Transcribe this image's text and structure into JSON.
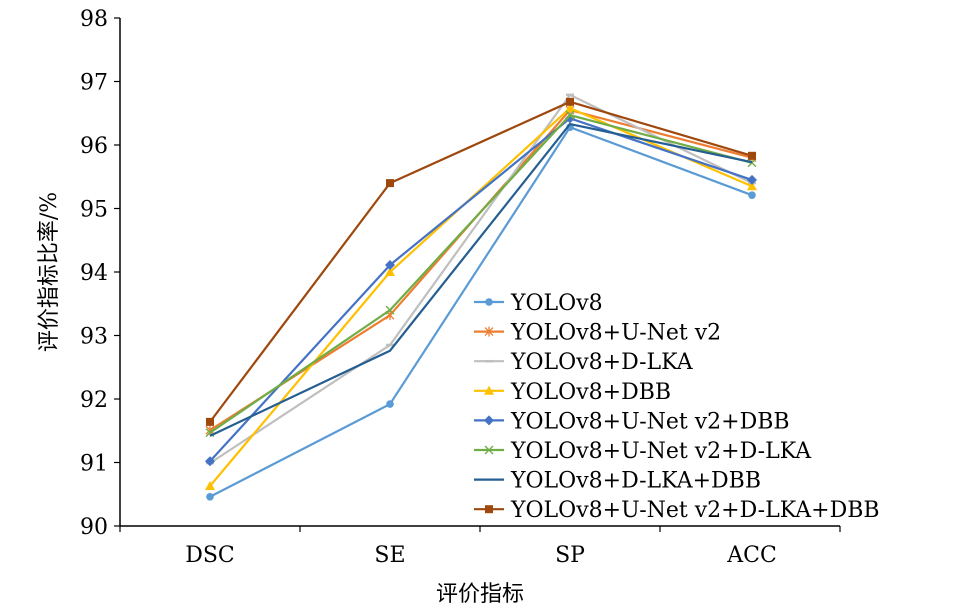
{
  "chart_data": {
    "type": "line",
    "title": "",
    "xlabel": "评价指标",
    "ylabel": "评价指标比率/%",
    "categories": [
      "DSC",
      "SE",
      "SP",
      "ACC"
    ],
    "ylim": [
      90,
      98
    ],
    "yticks": [
      "90",
      "91",
      "92",
      "93",
      "94",
      "95",
      "96",
      "97",
      "98"
    ],
    "grid": false,
    "legend_position": "bottom-right",
    "series": [
      {
        "name": "YOLOv8",
        "color": "#5b9bd5",
        "marker": "circle",
        "values": [
          90.46,
          91.92,
          96.28,
          95.21
        ]
      },
      {
        "name": "YOLOv8+U-Net v2",
        "color": "#ed7d31",
        "marker": "star",
        "values": [
          91.51,
          93.32,
          96.55,
          95.8
        ]
      },
      {
        "name": "YOLOv8+D-LKA",
        "color": "#bfbfbf",
        "marker": "dash",
        "values": [
          90.99,
          92.85,
          96.79,
          95.4
        ]
      },
      {
        "name": "YOLOv8+DBB",
        "color": "#ffc000",
        "marker": "triangle",
        "values": [
          90.63,
          94.0,
          96.58,
          95.35
        ]
      },
      {
        "name": "YOLOv8+U-Net v2+DBB",
        "color": "#4472c4",
        "marker": "diamond",
        "values": [
          91.02,
          94.11,
          96.42,
          95.45
        ]
      },
      {
        "name": "YOLOv8+U-Net v2+D-LKA",
        "color": "#70ad47",
        "marker": "x",
        "values": [
          91.47,
          93.4,
          96.47,
          95.72
        ]
      },
      {
        "name": "YOLOv8+D-LKA+DBB",
        "color": "#255e91",
        "marker": "none",
        "values": [
          91.42,
          92.76,
          96.33,
          95.73
        ]
      },
      {
        "name": "YOLOv8+U-Net v2+D-LKA+DBB",
        "color": "#9e480e",
        "marker": "square",
        "values": [
          91.64,
          95.4,
          96.68,
          95.83
        ]
      }
    ]
  }
}
